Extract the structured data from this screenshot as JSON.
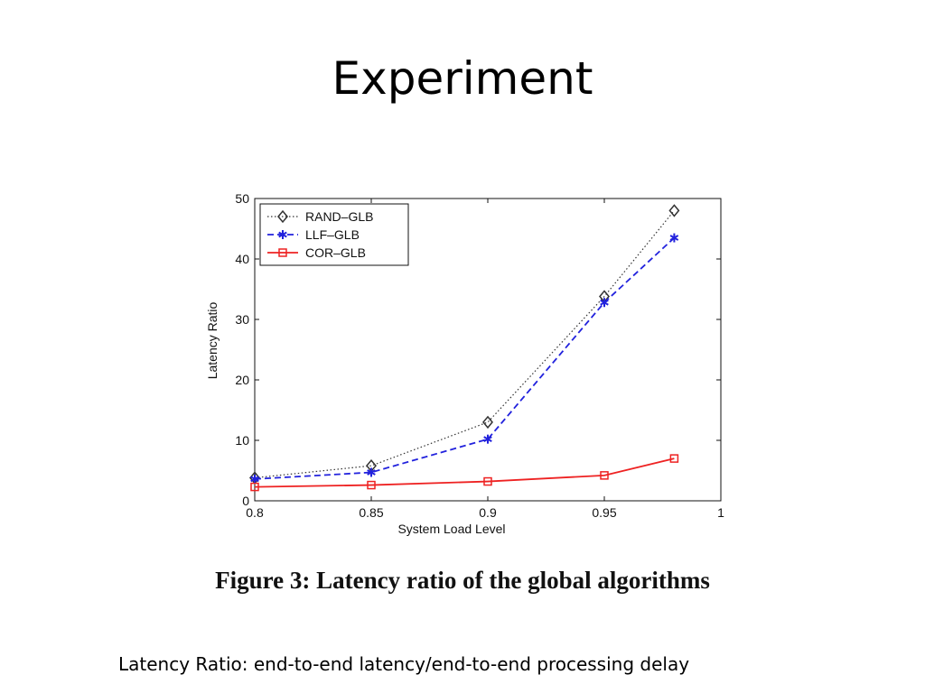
{
  "slide": {
    "title": "Experiment",
    "caption": "Figure 3: Latency ratio of the global algorithms",
    "footnote": "Latency Ratio: end-to-end latency/end-to-end processing delay"
  },
  "chart_data": {
    "type": "line",
    "title": "",
    "xlabel": "System Load Level",
    "ylabel": "Latency Ratio",
    "xlim": [
      0.8,
      1
    ],
    "ylim": [
      0,
      50
    ],
    "xticks": [
      "0.8",
      "0.85",
      "0.9",
      "0.95",
      "1"
    ],
    "yticks": [
      "0",
      "10",
      "20",
      "30",
      "40",
      "50"
    ],
    "x": [
      0.8,
      0.85,
      0.9,
      0.95,
      0.98
    ],
    "legend_position": "top-left",
    "grid": false,
    "series": [
      {
        "name": "RAND–GLB",
        "values": [
          3.8,
          5.8,
          13.0,
          33.8,
          48.0
        ],
        "color": "#333333",
        "line": "dotted",
        "marker": "diamond"
      },
      {
        "name": "LLF–GLB",
        "values": [
          3.6,
          4.7,
          10.2,
          32.8,
          43.5
        ],
        "color": "#2222dd",
        "line": "dashed",
        "marker": "asterisk"
      },
      {
        "name": "COR–GLB",
        "values": [
          2.3,
          2.6,
          3.2,
          4.2,
          7.0
        ],
        "color": "#ee2222",
        "line": "solid",
        "marker": "square"
      }
    ]
  }
}
